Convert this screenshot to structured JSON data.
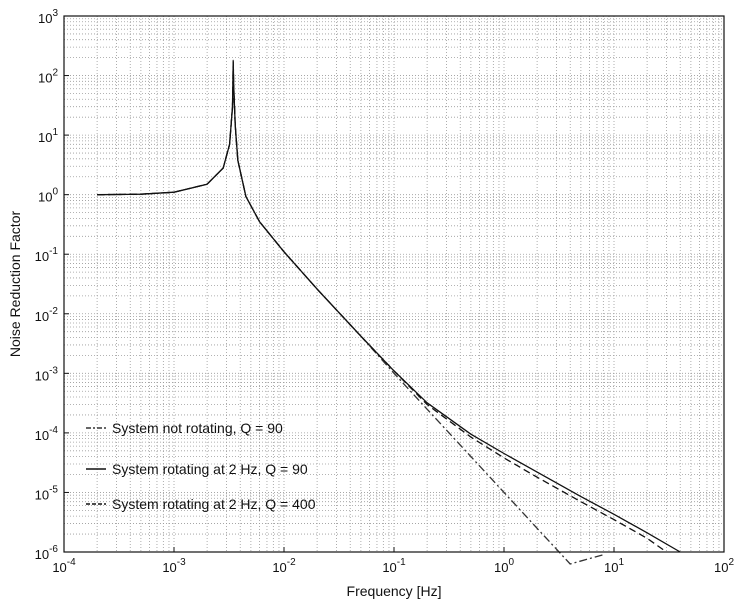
{
  "chart_data": {
    "type": "line",
    "title": "",
    "xlabel": "Frequency [Hz]",
    "ylabel": "Noise Reduction Factor",
    "xscale": "log",
    "yscale": "log",
    "xlim": [
      0.0001,
      100
    ],
    "ylim": [
      1e-06,
      1000
    ],
    "grid": true,
    "x_ticks": [
      {
        "base": "10",
        "exp": "-4"
      },
      {
        "base": "10",
        "exp": "-3"
      },
      {
        "base": "10",
        "exp": "-2"
      },
      {
        "base": "10",
        "exp": "-1"
      },
      {
        "base": "10",
        "exp": "0"
      },
      {
        "base": "10",
        "exp": "1"
      },
      {
        "base": "10",
        "exp": "2"
      }
    ],
    "y_ticks": [
      {
        "base": "10",
        "exp": "-6"
      },
      {
        "base": "10",
        "exp": "-5"
      },
      {
        "base": "10",
        "exp": "-4"
      },
      {
        "base": "10",
        "exp": "-3"
      },
      {
        "base": "10",
        "exp": "-2"
      },
      {
        "base": "10",
        "exp": "-1"
      },
      {
        "base": "10",
        "exp": "0"
      },
      {
        "base": "10",
        "exp": "1"
      },
      {
        "base": "10",
        "exp": "2"
      },
      {
        "base": "10",
        "exp": "3"
      }
    ],
    "legend_placement": "lower-left",
    "series": [
      {
        "name": "System not rotating, Q = 90",
        "style": "dashdot",
        "color": "#333333",
        "x": [
          0.0002,
          0.0005,
          0.001,
          0.002,
          0.0028,
          0.0032,
          0.0034,
          0.00345,
          0.0035,
          0.0036,
          0.0038,
          0.0045,
          0.006,
          0.01,
          0.02,
          0.05,
          0.1,
          0.2,
          0.5,
          1,
          2,
          4,
          8
        ],
        "y": [
          1.0,
          1.02,
          1.1,
          1.5,
          2.8,
          7,
          30,
          180,
          60,
          15,
          3.8,
          0.93,
          0.35,
          0.11,
          0.026,
          0.0042,
          0.001,
          0.00025,
          4e-05,
          1e-05,
          2.5e-06,
          6.3e-07,
          9e-07
        ]
      },
      {
        "name": "System rotating at 2 Hz, Q = 90",
        "style": "solid",
        "color": "#111111",
        "x": [
          0.0002,
          0.0005,
          0.001,
          0.002,
          0.0028,
          0.0032,
          0.0034,
          0.00345,
          0.0035,
          0.0036,
          0.0038,
          0.0045,
          0.006,
          0.01,
          0.02,
          0.05,
          0.1,
          0.2,
          0.5,
          1,
          2,
          5,
          10,
          20,
          40
        ],
        "y": [
          1.0,
          1.02,
          1.1,
          1.5,
          2.8,
          7,
          30,
          170,
          60,
          15,
          3.8,
          0.93,
          0.35,
          0.11,
          0.026,
          0.0042,
          0.0011,
          0.00032,
          9.5e-05,
          4.5e-05,
          2.2e-05,
          8.5e-06,
          4.3e-06,
          2.1e-06,
          1e-06
        ]
      },
      {
        "name": "System rotating at 2 Hz, Q = 400",
        "style": "dashed",
        "color": "#111111",
        "x": [
          0.0002,
          0.0005,
          0.001,
          0.002,
          0.0028,
          0.0032,
          0.0034,
          0.00345,
          0.0035,
          0.0036,
          0.0038,
          0.0045,
          0.006,
          0.01,
          0.02,
          0.05,
          0.1,
          0.2,
          0.5,
          1,
          2,
          5,
          10,
          20,
          30
        ],
        "y": [
          1.0,
          1.02,
          1.1,
          1.5,
          2.8,
          7,
          30,
          90,
          60,
          15,
          3.8,
          0.93,
          0.35,
          0.11,
          0.026,
          0.0042,
          0.0011,
          0.0003,
          8.5e-05,
          3.8e-05,
          1.8e-05,
          7e-06,
          3.5e-06,
          1.7e-06,
          1e-06
        ]
      }
    ]
  }
}
